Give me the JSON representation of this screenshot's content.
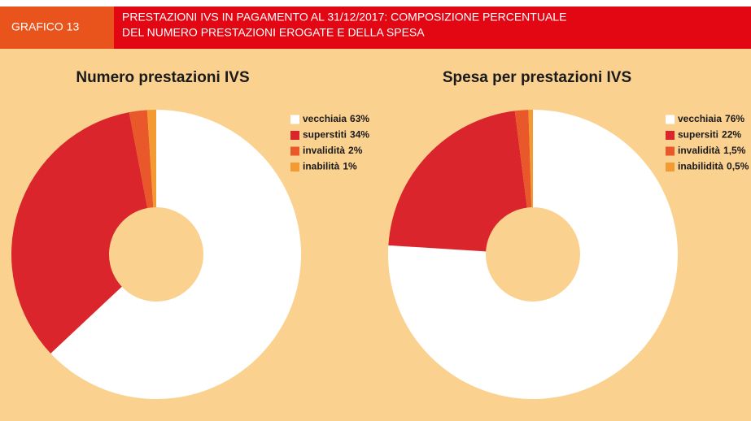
{
  "header": {
    "label": "GRAFICO 13",
    "title": [
      "PRESTAZIONI IVS IN PAGAMENTO AL 31/12/2017: COMPOSIZIONE PERCENTUALE",
      "DEL NUMERO PRESTAZIONI EROGATE E DELLA SPESA"
    ]
  },
  "chart_data": [
    {
      "type": "donut",
      "title": "Numero prestazioni IVS",
      "categories": [
        "vecchiaia",
        "superstiti",
        "invalidità",
        "inabilità"
      ],
      "values": [
        63,
        34,
        2,
        1
      ],
      "value_labels": [
        "63%",
        "34%",
        "2%",
        "1%"
      ],
      "colors": [
        "#ffffff",
        "#d9252b",
        "#e8582a",
        "#f39a33"
      ]
    },
    {
      "type": "donut",
      "title": "Spesa per prestazioni IVS",
      "categories": [
        "vecchiaia",
        "supersiti",
        "invalidità",
        "inabilidità"
      ],
      "values": [
        76,
        22,
        1.5,
        0.5
      ],
      "value_labels": [
        "76%",
        "22%",
        "1,5%",
        "0,5%"
      ],
      "colors": [
        "#ffffff",
        "#d9252b",
        "#e8582a",
        "#f39a33"
      ]
    }
  ]
}
